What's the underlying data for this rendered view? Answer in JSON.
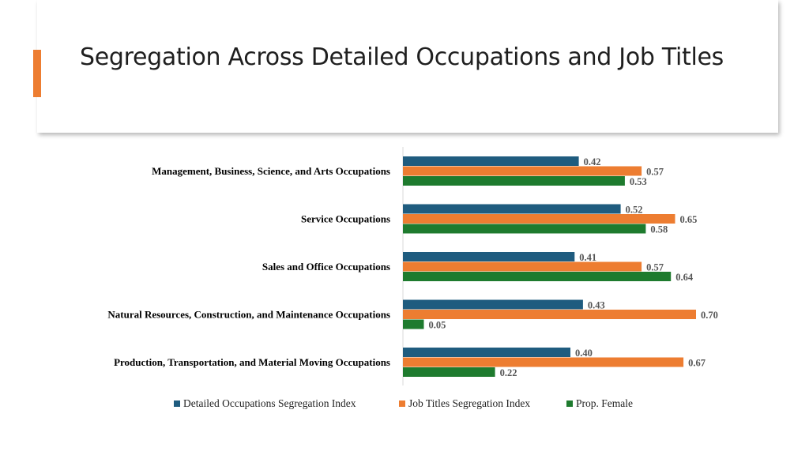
{
  "slide": {
    "title": "Segregation Across Detailed Occupations and Job Titles",
    "accent_color": "#ED7D31"
  },
  "chart_data": {
    "type": "bar",
    "orientation": "horizontal",
    "categories": [
      "Management,  Business, Science, and Arts Occupations",
      "Service Occupations",
      "Sales and Office Occupations",
      "Natural Resources, Construction, and Maintenance Occupations",
      "Production, Transportation, and Material Moving Occupations"
    ],
    "series": [
      {
        "name": "Detailed Occupations Segregation Index",
        "color": "#1F5C7F",
        "values": [
          0.42,
          0.52,
          0.41,
          0.43,
          0.4
        ],
        "labels": [
          "0.42",
          "0.52",
          "0.41",
          "0.43",
          "0.40"
        ]
      },
      {
        "name": "Job Titles Segregation Index",
        "color": "#ED7D31",
        "values": [
          0.57,
          0.65,
          0.57,
          0.7,
          0.67
        ],
        "labels": [
          "0.57",
          "0.65",
          "0.57",
          "0.70",
          "0.67"
        ]
      },
      {
        "name": "Prop. Female",
        "color": "#1E7B2E",
        "values": [
          0.53,
          0.58,
          0.64,
          0.05,
          0.22
        ],
        "labels": [
          "0.53",
          "0.58",
          "0.64",
          "0.05",
          "0.22"
        ]
      }
    ],
    "xlim": [
      0,
      1
    ],
    "grid": false,
    "legend_position": "bottom"
  }
}
